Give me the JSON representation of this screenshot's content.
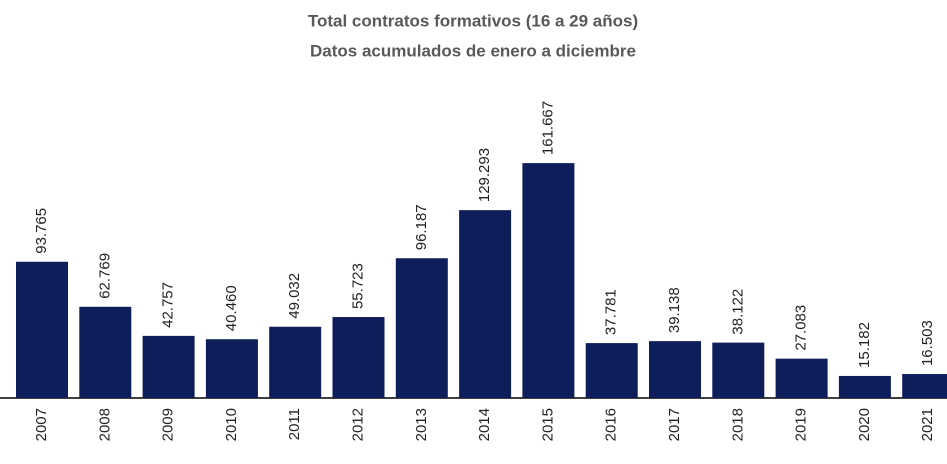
{
  "chart_data": {
    "type": "bar",
    "title": "Total contratos formativos (16 a 29 años)",
    "subtitle": "Datos acumulados de enero a diciembre",
    "categories": [
      "2007",
      "2008",
      "2009",
      "2010",
      "2011",
      "2012",
      "2013",
      "2014",
      "2015",
      "2016",
      "2017",
      "2018",
      "2019",
      "2020",
      "2021"
    ],
    "values": [
      93765,
      62769,
      42757,
      40460,
      49032,
      55723,
      96187,
      129293,
      161667,
      37781,
      39138,
      38122,
      27083,
      15182,
      16503
    ],
    "value_labels": [
      "93.765",
      "62.769",
      "42.757",
      "40.460",
      "49.032",
      "55.723",
      "96.187",
      "129.293",
      "161.667",
      "37.781",
      "39.138",
      "38.122",
      "27.083",
      "15.182",
      "16.503"
    ],
    "color": "#0d1e5b",
    "ylim": [
      0,
      170000
    ]
  }
}
